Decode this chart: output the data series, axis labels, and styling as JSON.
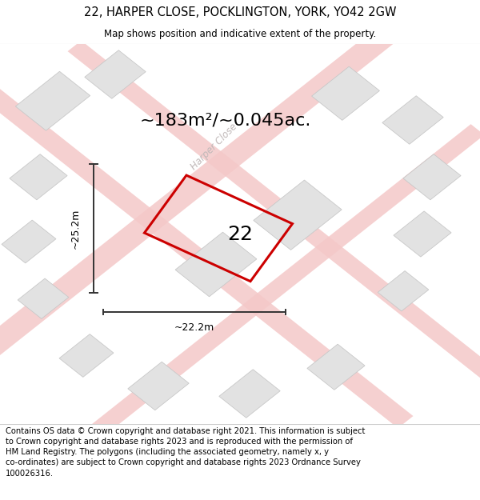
{
  "title": "22, HARPER CLOSE, POCKLINGTON, YORK, YO42 2GW",
  "subtitle": "Map shows position and indicative extent of the property.",
  "footer": "Contains OS data © Crown copyright and database right 2021. This information is subject to Crown copyright and database rights 2023 and is reproduced with the permission of HM Land Registry. The polygons (including the associated geometry, namely x, y co-ordinates) are subject to Crown copyright and database rights 2023 Ordnance Survey 100026316.",
  "area_label": "~183m²/~0.045ac.",
  "number_label": "22",
  "width_label": "~22.2m",
  "height_label": "~25.2m",
  "bg_color": "#f2f2f2",
  "road_color": "#f4c8c8",
  "road_color2": "#f0b8b8",
  "building_color": "#e2e2e2",
  "building_border": "#c8c8c8",
  "red_outline": "#cc0000",
  "dim_line_color": "#333333",
  "street_label_color": "#c0b8b8",
  "title_fontsize": 10.5,
  "subtitle_fontsize": 8.5,
  "footer_fontsize": 7.2,
  "area_fontsize": 16,
  "number_fontsize": 18,
  "dim_fontsize": 9
}
